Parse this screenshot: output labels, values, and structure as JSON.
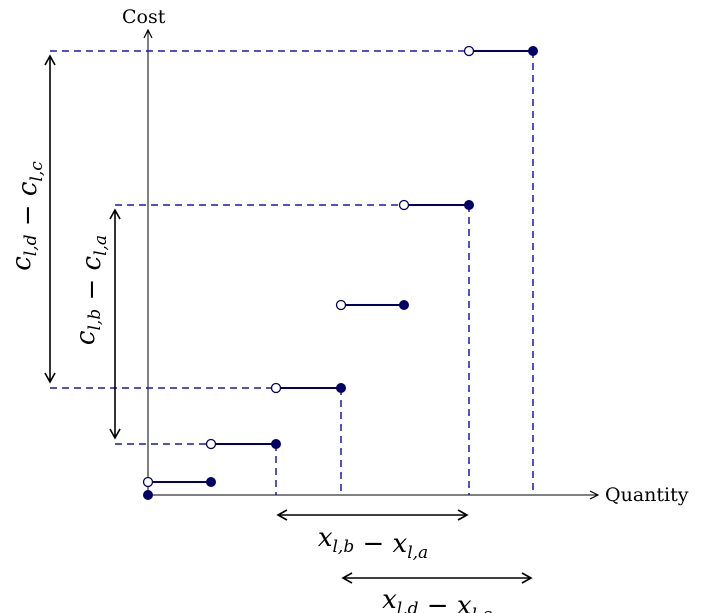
{
  "diagram": {
    "axes": {
      "y_label": "Cost",
      "x_label": "Quantity"
    },
    "colors": {
      "step": "#000066",
      "dashed": "#1a1aa8",
      "axis": "#000000",
      "dimension": "#000000"
    },
    "dimension_labels": {
      "c_db": "c_{l,d} − c_{l,c}",
      "c_ba": "c_{l,b} − c_{l,a}",
      "x_ba": "x_{l,b} − x_{l,a}",
      "x_dc": "x_{l,d} − x_{l,c}"
    },
    "step_function": {
      "steps": 6,
      "description_points": [
        "open circle at start of each step",
        "filled circle at end of each step"
      ]
    }
  }
}
